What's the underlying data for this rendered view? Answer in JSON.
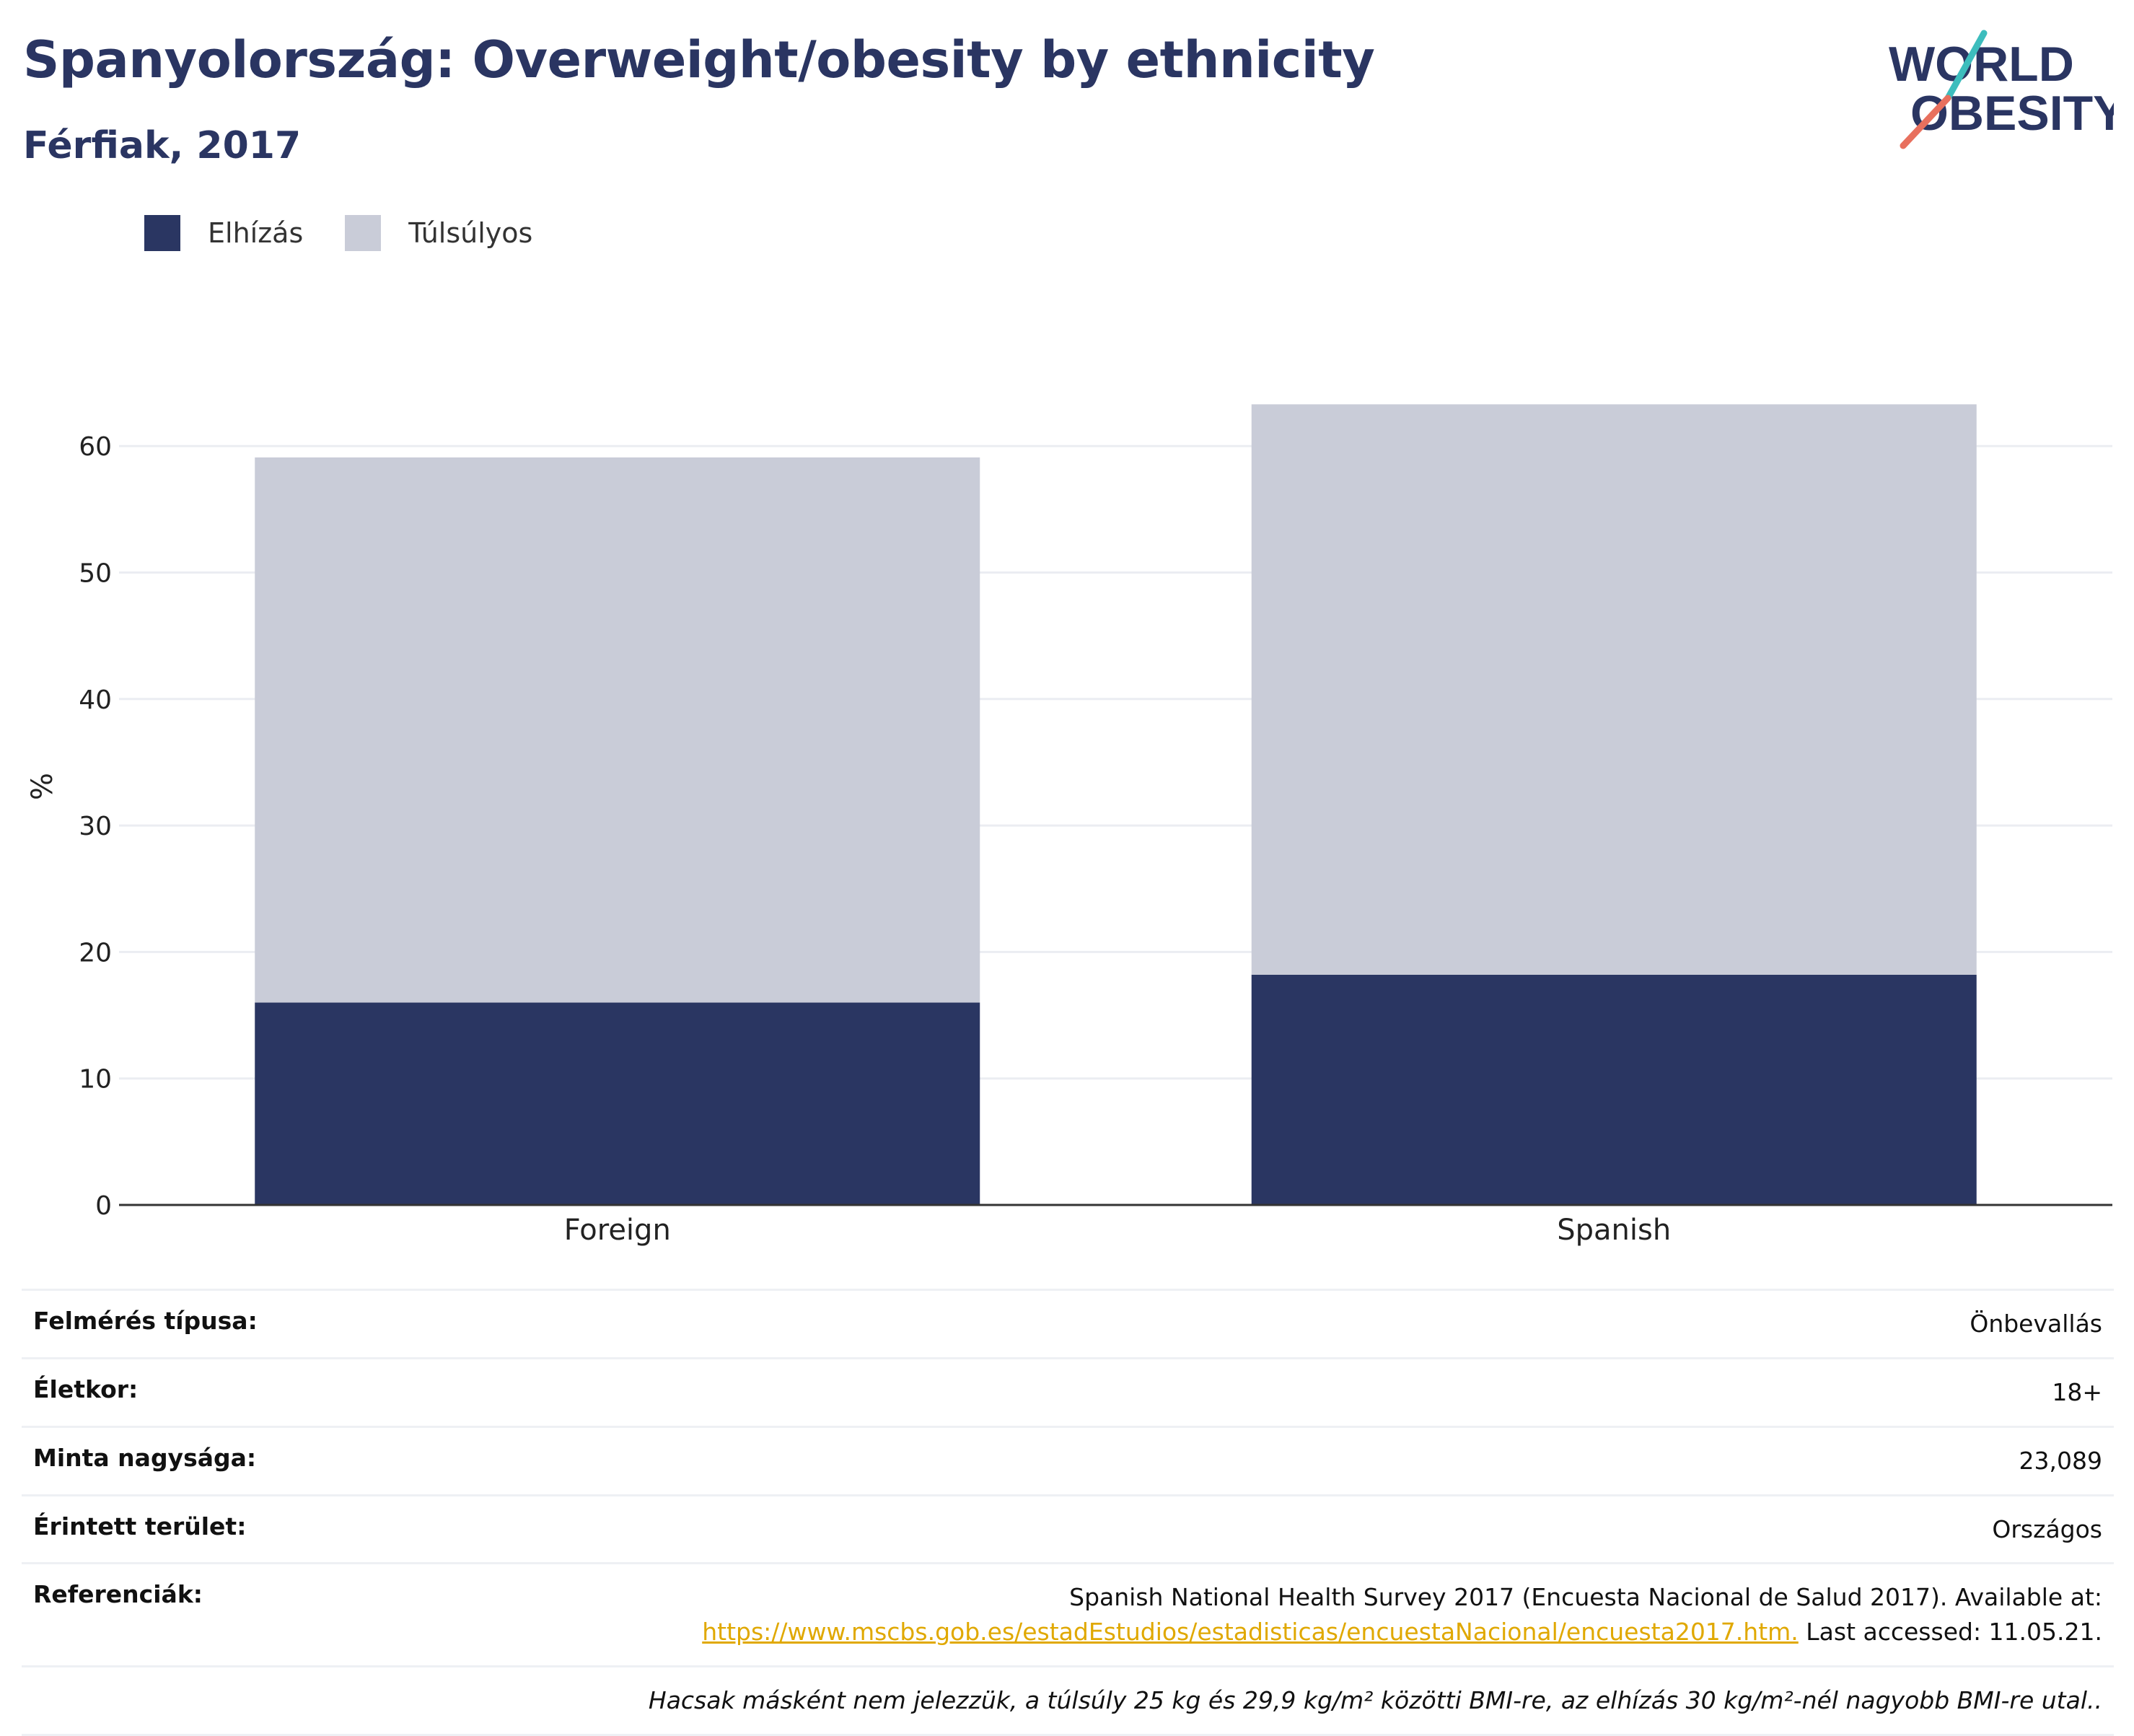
{
  "header": {
    "title": "Spanyolország: Overweight/obesity by ethnicity",
    "subtitle": "Férfiak, 2017"
  },
  "logo": {
    "line1": "WORLD",
    "line2": "OBESITY",
    "colors": {
      "text": "#2a3562",
      "teal": "#3dbdbd",
      "coral": "#e8705e"
    }
  },
  "legend": [
    {
      "label": "Elhízás",
      "color": "#2a3662"
    },
    {
      "label": "Túlsúlyos",
      "color": "#c9ccd8"
    }
  ],
  "chart_data": {
    "type": "bar",
    "stacked": true,
    "categories": [
      "Foreign",
      "Spanish"
    ],
    "series": [
      {
        "name": "Elhízás",
        "color": "#2a3662",
        "values": [
          16.0,
          18.2
        ]
      },
      {
        "name": "Túlsúlyos",
        "color": "#c9ccd8",
        "values": [
          43.1,
          45.1
        ]
      }
    ],
    "ylabel": "%",
    "ylim": [
      0,
      65
    ],
    "yticks": [
      0,
      10,
      20,
      30,
      40,
      50,
      60
    ],
    "grid": true,
    "legend_position": "top-left"
  },
  "meta": {
    "survey_type_label": "Felmérés típusa:",
    "survey_type_value": "Önbevallás",
    "age_label": "Életkor:",
    "age_value": "18+",
    "sample_label": "Minta nagysága:",
    "sample_value": "23,089",
    "area_label": "Érintett terület:",
    "area_value": "Országos",
    "refs_label": "Referenciák:",
    "refs_text": "Spanish National Health Survey 2017 (Encuesta Nacional de Salud 2017). Available at:",
    "refs_link": "https://www.mscbs.gob.es/estadEstudios/estadisticas/encuestaNacional/encuesta2017.htm.",
    "refs_accessed": " Last accessed: 11.05.21.",
    "note": "Hacsak másként nem jelezzük, a túlsúly 25 kg és 29,9 kg/m² közötti BMI-re, az elhízás 30 kg/m²-nél nagyobb BMI-re utal.."
  }
}
